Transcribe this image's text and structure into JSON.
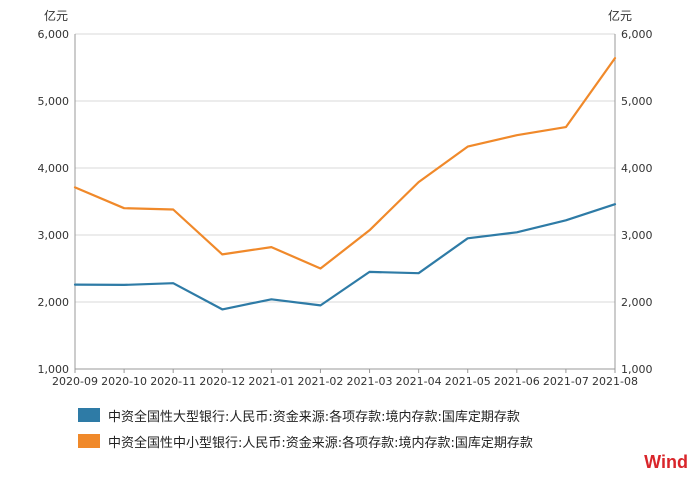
{
  "chart_data": {
    "type": "line",
    "x": [
      "2020-09",
      "2020-10",
      "2020-11",
      "2020-12",
      "2021-01",
      "2021-02",
      "2021-03",
      "2021-04",
      "2021-05",
      "2021-06",
      "2021-07",
      "2021-08"
    ],
    "series": [
      {
        "name": "中资全国性大型银行:人民币:资金来源:各项存款:境内存款:国库定期存款",
        "color": "#2e7ba6",
        "values": [
          2260,
          2255,
          2280,
          1890,
          2040,
          1950,
          2450,
          2430,
          2950,
          3040,
          3220,
          3460
        ]
      },
      {
        "name": "中资全国性中小型银行:人民币:资金来源:各项存款:境内存款:国库定期存款",
        "color": "#f0892a",
        "values": [
          3710,
          3400,
          3380,
          2710,
          2820,
          2500,
          3070,
          3790,
          4320,
          4490,
          4610,
          5640
        ]
      }
    ],
    "yticks": [
      "1,000",
      "2,000",
      "3,000",
      "4,000",
      "5,000",
      "6,000"
    ],
    "ylim": [
      1000,
      6000
    ],
    "ylabel_left": "亿元",
    "ylabel_right": "亿元",
    "grid": true,
    "legend_position": "bottom"
  },
  "brand": "Wind"
}
